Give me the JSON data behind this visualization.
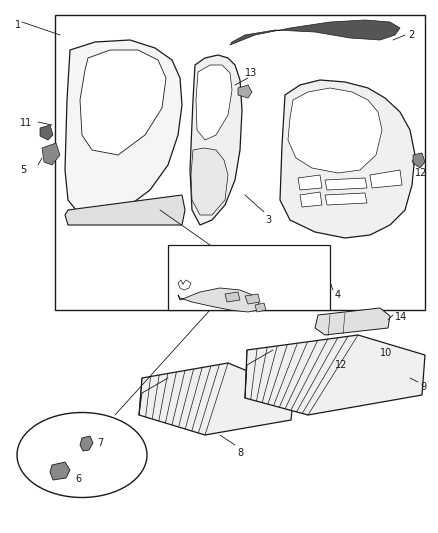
{
  "bg_color": "#ffffff",
  "line_color": "#1a1a1a",
  "fig_width": 4.39,
  "fig_height": 5.33,
  "dpi": 100
}
